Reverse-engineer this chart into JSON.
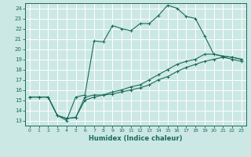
{
  "title": "",
  "xlabel": "Humidex (Indice chaleur)",
  "bg_color": "#cce8e4",
  "grid_color": "#ffffff",
  "line_color": "#1a6b5a",
  "xlim": [
    -0.5,
    23.5
  ],
  "ylim": [
    12.5,
    24.5
  ],
  "xticks": [
    0,
    1,
    2,
    3,
    4,
    5,
    6,
    7,
    8,
    9,
    10,
    11,
    12,
    13,
    14,
    15,
    16,
    17,
    18,
    19,
    20,
    21,
    22,
    23
  ],
  "yticks": [
    13,
    14,
    15,
    16,
    17,
    18,
    19,
    20,
    21,
    22,
    23,
    24
  ],
  "line1_x": [
    0,
    1,
    2,
    3,
    4,
    5,
    6,
    7,
    8,
    9,
    10,
    11,
    12,
    13,
    14,
    15,
    16,
    17,
    18,
    19,
    20,
    21,
    22,
    23
  ],
  "line1_y": [
    15.3,
    15.3,
    15.3,
    13.5,
    13.0,
    15.3,
    15.5,
    20.8,
    20.7,
    22.3,
    22.0,
    21.8,
    22.5,
    22.5,
    23.3,
    24.3,
    24.0,
    23.2,
    23.0,
    21.3,
    19.5,
    19.3,
    19.2,
    19.0
  ],
  "line2_x": [
    0,
    1,
    2,
    3,
    4,
    5,
    6,
    7,
    8,
    9,
    10,
    11,
    12,
    13,
    14,
    15,
    16,
    17,
    18,
    19,
    20,
    21,
    22,
    23
  ],
  "line2_y": [
    15.3,
    15.3,
    15.3,
    13.5,
    13.2,
    13.3,
    15.3,
    15.5,
    15.5,
    15.8,
    16.0,
    16.3,
    16.5,
    17.0,
    17.5,
    18.0,
    18.5,
    18.8,
    19.0,
    19.5,
    19.5,
    19.3,
    19.2,
    19.0
  ],
  "line3_x": [
    0,
    1,
    2,
    3,
    4,
    5,
    6,
    7,
    8,
    9,
    10,
    11,
    12,
    13,
    14,
    15,
    16,
    17,
    18,
    19,
    20,
    21,
    22,
    23
  ],
  "line3_y": [
    15.3,
    15.3,
    15.3,
    13.5,
    13.2,
    13.3,
    15.0,
    15.3,
    15.5,
    15.6,
    15.8,
    16.0,
    16.2,
    16.5,
    17.0,
    17.3,
    17.8,
    18.2,
    18.5,
    18.8,
    19.0,
    19.2,
    19.0,
    18.8
  ]
}
